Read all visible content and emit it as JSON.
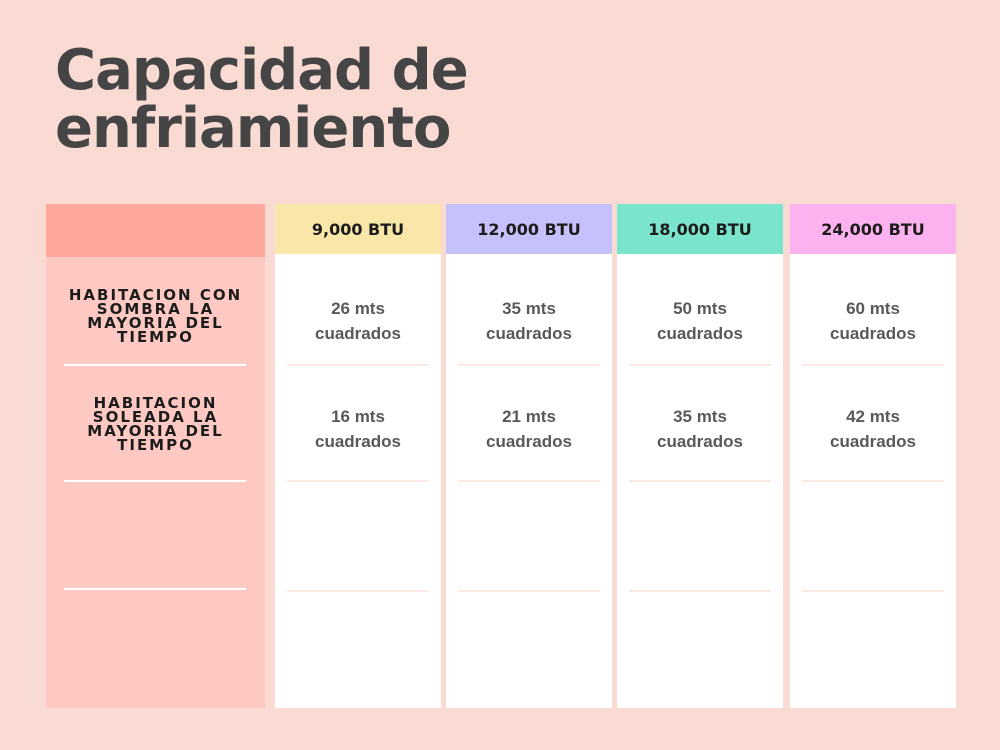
{
  "title": {
    "line1": "Capacidad de",
    "line2": "enfriamiento"
  },
  "rows": [
    {
      "lines": [
        "HABITACION CON",
        "SOMBRA LA",
        "MAYORIA DEL",
        "TIEMPO"
      ]
    },
    {
      "lines": [
        "HABITACION",
        "SOLEADA LA",
        "MAYORIA DEL",
        "TIEMPO"
      ]
    }
  ],
  "columns": [
    {
      "header": "9,000 BTU",
      "color": "#f9e6a9",
      "cells": [
        [
          "26 mts",
          "cuadrados"
        ],
        [
          "16 mts",
          "cuadrados"
        ]
      ]
    },
    {
      "header": "12,000 BTU",
      "color": "#c6c1fa",
      "cells": [
        [
          "35 mts",
          "cuadrados"
        ],
        [
          "21 mts",
          "cuadrados"
        ]
      ]
    },
    {
      "header": "18,000 BTU",
      "color": "#7be4cc",
      "cells": [
        [
          "50 mts",
          "cuadrados"
        ],
        [
          "35 mts",
          "cuadrados"
        ]
      ]
    },
    {
      "header": "24,000 BTU",
      "color": "#fcb2ee",
      "cells": [
        [
          "60 mts",
          "cuadrados"
        ],
        [
          "42 mts",
          "cuadrados"
        ]
      ]
    }
  ],
  "colors": {
    "background": "#fadbd3",
    "label_column": "#ffc9c3",
    "label_header": "#fda89a",
    "title_text": "#454545"
  }
}
